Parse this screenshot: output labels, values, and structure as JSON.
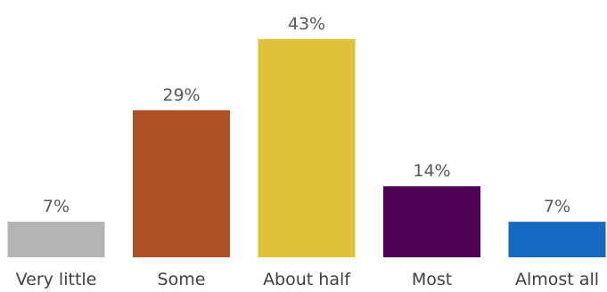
{
  "chart_data": {
    "type": "bar",
    "title": "",
    "xlabel": "",
    "ylabel": "",
    "categories": [
      "Very little",
      "Some",
      "About half",
      "Most",
      "Almost all"
    ],
    "values": [
      7,
      29,
      43,
      14,
      7
    ],
    "value_labels": [
      "7%",
      "29%",
      "43%",
      "14%",
      "7%"
    ],
    "unit": "%",
    "ylim": [
      0,
      43
    ],
    "grid": false,
    "legend": "none",
    "colors": [
      "#b4b4b4",
      "#ad5226",
      "#e0c23a",
      "#4f0057",
      "#1569bf"
    ]
  }
}
